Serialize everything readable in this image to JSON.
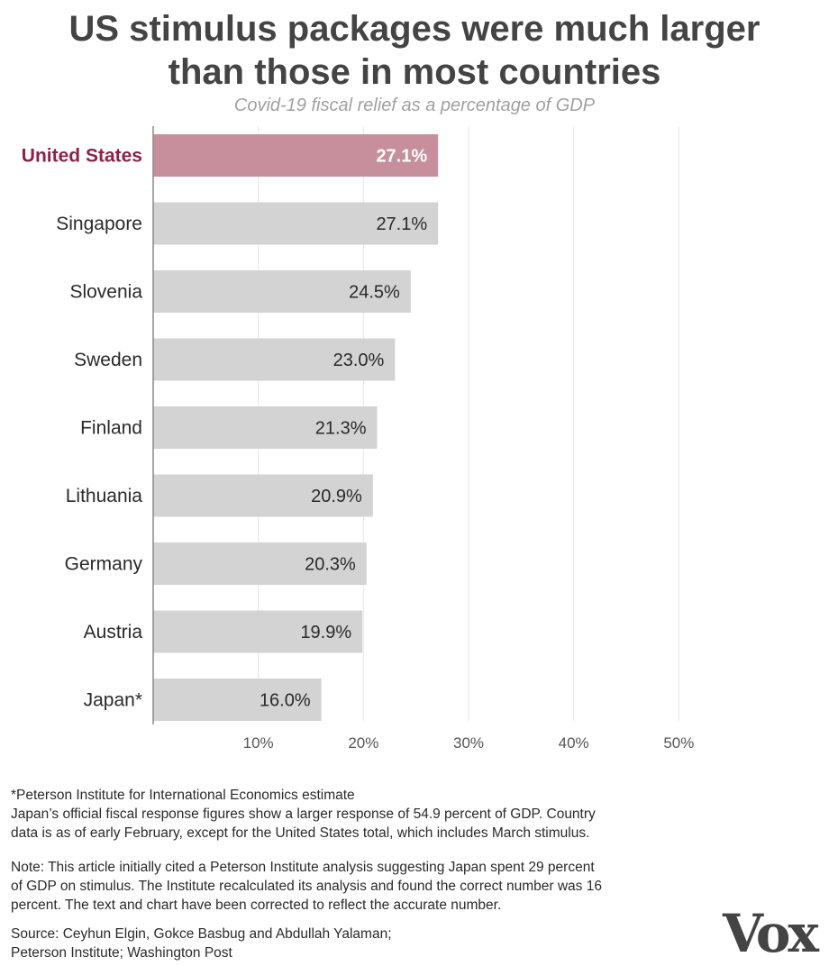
{
  "header": {
    "title_line1": "US stimulus packages were much larger",
    "title_line2": "than those in most countries",
    "subtitle": "Covid-19 fiscal relief as a percentage of GDP"
  },
  "chart_data": {
    "type": "bar",
    "orientation": "horizontal",
    "title": "US stimulus packages were much larger than those in most countries",
    "subtitle": "Covid-19 fiscal relief as a percentage of GDP",
    "categories": [
      "United States",
      "Singapore",
      "Slovenia",
      "Sweden",
      "Finland",
      "Lithuania",
      "Germany",
      "Austria",
      "Japan*"
    ],
    "values": [
      27.1,
      27.1,
      24.5,
      23.0,
      21.3,
      20.9,
      20.3,
      19.9,
      16.0
    ],
    "value_labels": [
      "27.1%",
      "27.1%",
      "24.5%",
      "23.0%",
      "21.3%",
      "20.9%",
      "20.3%",
      "19.9%",
      "16.0%"
    ],
    "highlight": "United States",
    "xlim": [
      0,
      54
    ],
    "xticks": [
      10,
      20,
      30,
      40,
      50
    ],
    "xtick_labels": [
      "10%",
      "20%",
      "30%",
      "40%",
      "50%"
    ],
    "grid": "vertical",
    "colors": {
      "highlight": "#c68f9b",
      "highlight_label": "#8b2346",
      "bar": "#d3d3d3",
      "grid": "#e6e6e6",
      "axis": "#888888"
    }
  },
  "notes": {
    "footnote_lines": [
      "*Peterson Institute for International Economics estimate",
      "Japan’s official fiscal response figures show a larger response of 54.9 percent of GDP. Country",
      "data is as of early February, except for the United States total, which includes March stimulus."
    ],
    "correction_lines": [
      "Note: This article initially cited a Peterson Institute analysis suggesting Japan spent 29 percent",
      "of GDP on stimulus. The Institute recalculated its analysis and found the correct number was 16",
      "percent. The text and chart have been corrected to reflect the accurate number."
    ],
    "source_lines": [
      "Source: Ceyhun Elgin, Gokce Basbug and Abdullah Yalaman;",
      "Peterson Institute; Washington Post"
    ]
  },
  "brand": {
    "logo_text": "Vox",
    "logo_color": "#444444"
  }
}
